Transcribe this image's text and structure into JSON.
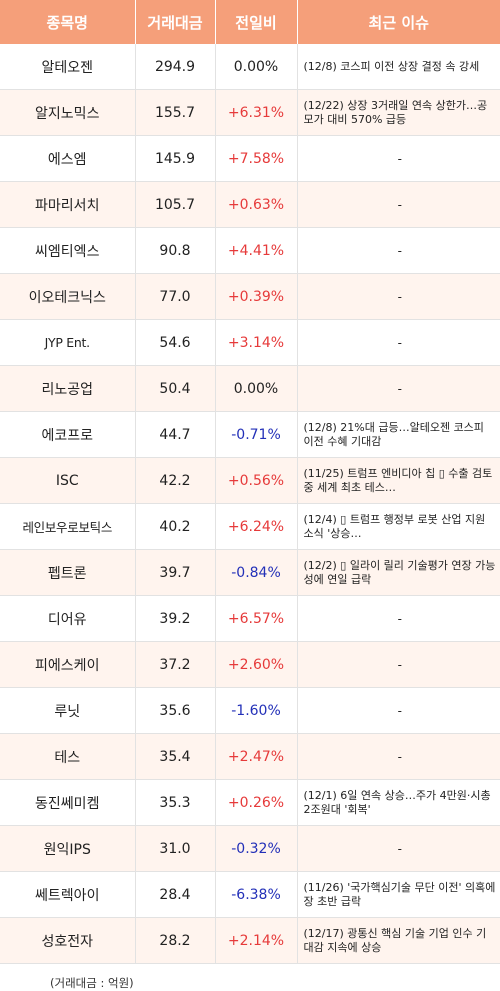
{
  "headers": [
    "종목명",
    "거래대금",
    "전일비",
    "최근 이슈"
  ],
  "rows": [
    {
      "name": "알테오젠",
      "volume": "294.9",
      "change": "0.00%",
      "dir": "flat",
      "issue": "(12/8) 코스피 이전 상장 결정 속 강세"
    },
    {
      "name": "알지노믹스",
      "volume": "155.7",
      "change": "+6.31%",
      "dir": "up",
      "issue": "(12/22) 상장 3거래일 연속 상한가…공모가 대비 570% 급등"
    },
    {
      "name": "에스엠",
      "volume": "145.9",
      "change": "+7.58%",
      "dir": "up",
      "issue": "-"
    },
    {
      "name": "파마리서치",
      "volume": "105.7",
      "change": "+0.63%",
      "dir": "up",
      "issue": "-"
    },
    {
      "name": "씨엠티엑스",
      "volume": "90.8",
      "change": "+4.41%",
      "dir": "up",
      "issue": "-"
    },
    {
      "name": "이오테크닉스",
      "volume": "77.0",
      "change": "+0.39%",
      "dir": "up",
      "issue": "-"
    },
    {
      "name": "JYP Ent.",
      "volume": "54.6",
      "change": "+3.14%",
      "dir": "up",
      "issue": "-"
    },
    {
      "name": "리노공업",
      "volume": "50.4",
      "change": "0.00%",
      "dir": "flat",
      "issue": "-"
    },
    {
      "name": "에코프로",
      "volume": "44.7",
      "change": "-0.71%",
      "dir": "down",
      "issue": "(12/8) 21%대 급등…알테오젠 코스피 이전 수혜 기대감"
    },
    {
      "name": "ISC",
      "volume": "42.2",
      "change": "+0.56%",
      "dir": "up",
      "issue": "(11/25) 트럼프 엔비디아 칩 ▯ 수출 검토 중 세계 최초 테스…"
    },
    {
      "name": "레인보우로보틱스",
      "volume": "40.2",
      "change": "+6.24%",
      "dir": "up",
      "issue": "(12/4) ▯ 트럼프 행정부 로봇 산업 지원 소식 '상승…"
    },
    {
      "name": "펩트론",
      "volume": "39.7",
      "change": "-0.84%",
      "dir": "down",
      "issue": "(12/2) ▯ 일라이 릴리 기술평가 연장 가능성에 연일 급락"
    },
    {
      "name": "디어유",
      "volume": "39.2",
      "change": "+6.57%",
      "dir": "up",
      "issue": "-"
    },
    {
      "name": "피에스케이",
      "volume": "37.2",
      "change": "+2.60%",
      "dir": "up",
      "issue": "-"
    },
    {
      "name": "루닛",
      "volume": "35.6",
      "change": "-1.60%",
      "dir": "down",
      "issue": "-"
    },
    {
      "name": "테스",
      "volume": "35.4",
      "change": "+2.47%",
      "dir": "up",
      "issue": "-"
    },
    {
      "name": "동진쎄미켐",
      "volume": "35.3",
      "change": "+0.26%",
      "dir": "up",
      "issue": "(12/1) 6일 연속 상승…주가 4만원·시총 2조원대 '회복'"
    },
    {
      "name": "원익IPS",
      "volume": "31.0",
      "change": "-0.32%",
      "dir": "down",
      "issue": "-"
    },
    {
      "name": "쎄트렉아이",
      "volume": "28.4",
      "change": "-6.38%",
      "dir": "down",
      "issue": "(11/26) '국가핵심기술 무단 이전' 의혹에 장 초반 급락"
    },
    {
      "name": "성호전자",
      "volume": "28.2",
      "change": "+2.14%",
      "dir": "up",
      "issue": "(12/17) 광통신 핵심 기술 기업 인수 기대감 지속에 상승"
    }
  ],
  "footnote": "(거래대금 : 억원)",
  "colors": {
    "header_bg": "#f59f7a",
    "alt_row_bg": "#fff4ee",
    "up": "#e63a3a",
    "down": "#2330b8",
    "border": "#e2e2e2"
  }
}
